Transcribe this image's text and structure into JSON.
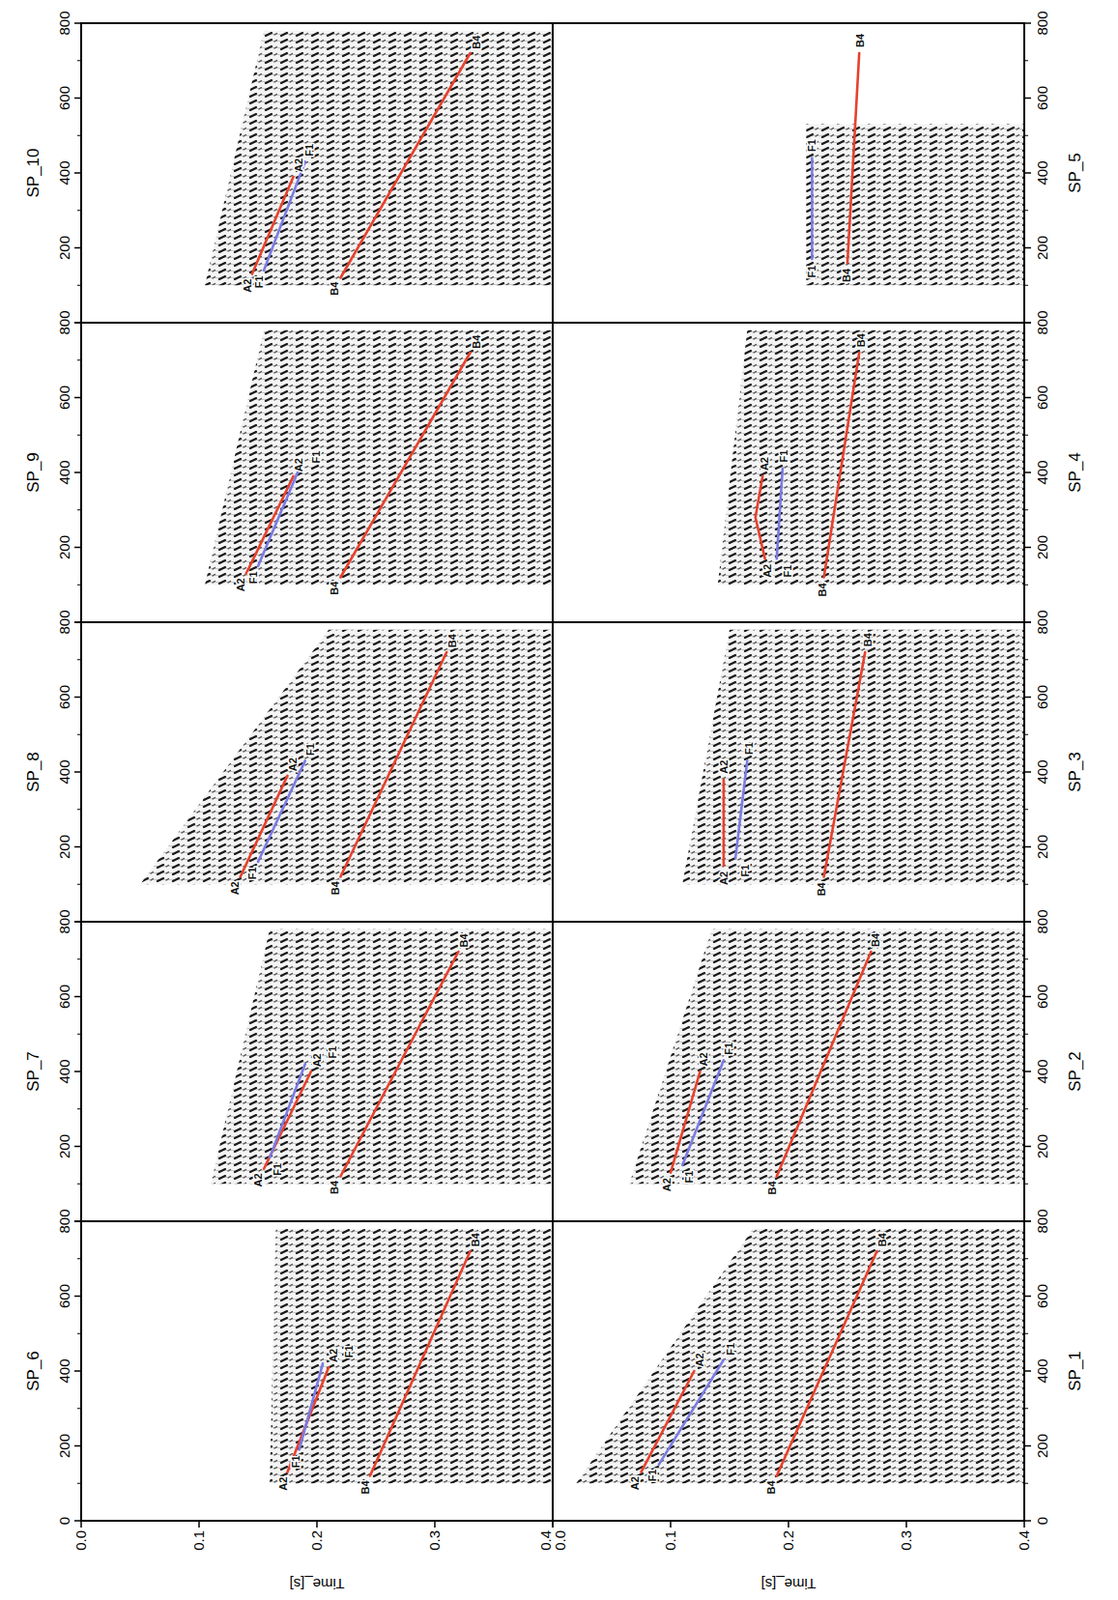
{
  "chart_data": [
    {
      "type": "line",
      "title": "SP_6",
      "xlim": [
        0,
        800
      ],
      "ylim": [
        0.4,
        0
      ],
      "xticks": [
        0,
        200,
        400,
        600,
        800
      ],
      "yticks": [
        {
          "value": 0,
          "label": "0.0"
        },
        0.1,
        0.2,
        0.3,
        0.4
      ],
      "y_label": "Time_[s]",
      "record": {
        "x": [
          100,
          780
        ],
        "start": [
          0.16,
          0.165
        ]
      },
      "series": [
        {
          "name": "A2",
          "color": "#e8412c",
          "x": [
            130,
            410
          ],
          "values": [
            0.175,
            0.21
          ]
        },
        {
          "name": "F1",
          "color": "#7b7be6",
          "x": [
            190,
            420
          ],
          "values": [
            0.185,
            0.205
          ]
        },
        {
          "name": "B4",
          "color": "#e8412c",
          "x": [
            120,
            720
          ],
          "values": [
            0.245,
            0.33
          ]
        }
      ]
    },
    {
      "type": "line",
      "title": "SP_7",
      "xlim": [
        0,
        800
      ],
      "ylim": [
        0.4,
        0
      ],
      "xticks": [
        0,
        200,
        400,
        600,
        800
      ],
      "record": {
        "x": [
          100,
          780
        ],
        "start": [
          0.11,
          0.16
        ]
      },
      "series": [
        {
          "name": "A2",
          "color": "#e8412c",
          "x": [
            140,
            400
          ],
          "values": [
            0.155,
            0.195
          ]
        },
        {
          "name": "F1",
          "color": "#7b7be6",
          "x": [
            170,
            420
          ],
          "values": [
            0.16,
            0.19
          ]
        },
        {
          "name": "B4",
          "color": "#e8412c",
          "x": [
            120,
            720
          ],
          "values": [
            0.22,
            0.32
          ]
        }
      ]
    },
    {
      "type": "line",
      "title": "SP_8",
      "xlim": [
        0,
        800
      ],
      "ylim": [
        0.4,
        0
      ],
      "xticks": [
        0,
        200,
        400,
        600,
        800
      ],
      "record": {
        "x": [
          100,
          780
        ],
        "start": [
          0.05,
          0.21
        ]
      },
      "series": [
        {
          "name": "A2",
          "color": "#e8412c",
          "x": [
            120,
            390
          ],
          "values": [
            0.135,
            0.175
          ]
        },
        {
          "name": "F1",
          "color": "#7b7be6",
          "x": [
            160,
            430
          ],
          "values": [
            0.15,
            0.19
          ]
        },
        {
          "name": "B4",
          "color": "#e8412c",
          "x": [
            120,
            720
          ],
          "values": [
            0.22,
            0.31
          ]
        }
      ]
    },
    {
      "type": "line",
      "title": "SP_9",
      "xlim": [
        0,
        800
      ],
      "ylim": [
        0.4,
        0
      ],
      "xticks": [
        0,
        200,
        400,
        600,
        800
      ],
      "record": {
        "x": [
          100,
          780
        ],
        "start": [
          0.105,
          0.155
        ]
      },
      "series": [
        {
          "name": "A2",
          "color": "#e8412c",
          "x": [
            130,
            390
          ],
          "values": [
            0.14,
            0.18
          ]
        },
        {
          "name": "F1",
          "color": "#7b7be6",
          "x": [
            150,
            410
          ],
          "values": [
            0.15,
            0.185
          ]
        },
        {
          "name": "B4",
          "color": "#e8412c",
          "x": [
            120,
            720
          ],
          "values": [
            0.22,
            0.33
          ]
        }
      ]
    },
    {
      "type": "line",
      "title": "SP_10",
      "xlim": [
        0,
        800
      ],
      "ylim": [
        0.4,
        0
      ],
      "xticks": [
        0,
        200,
        400,
        600,
        800
      ],
      "record": {
        "x": [
          100,
          780
        ],
        "start": [
          0.105,
          0.155
        ]
      },
      "series": [
        {
          "name": "A2",
          "color": "#e8412c",
          "x": [
            130,
            390
          ],
          "values": [
            0.145,
            0.18
          ]
        },
        {
          "name": "F1",
          "color": "#7b7be6",
          "x": [
            140,
            430
          ],
          "values": [
            0.155,
            0.19
          ]
        },
        {
          "name": "B4",
          "color": "#e8412c",
          "x": [
            120,
            720
          ],
          "values": [
            0.22,
            0.33
          ]
        }
      ]
    },
    {
      "type": "line",
      "title": "SP_1",
      "xlim": [
        0,
        800
      ],
      "ylim": [
        0.4,
        0
      ],
      "xticks": [
        0,
        200,
        400,
        600,
        800
      ],
      "yticks": [
        {
          "value": 0,
          "label": "0.0"
        },
        0.1,
        0.2,
        0.3,
        0.4
      ],
      "y_label": "Time_[s]",
      "record": {
        "x": [
          100,
          780
        ],
        "start": [
          0.02,
          0.17
        ]
      },
      "series": [
        {
          "name": "A2",
          "color": "#e8412c",
          "x": [
            130,
            400
          ],
          "values": [
            0.075,
            0.12
          ]
        },
        {
          "name": "F1",
          "color": "#7b7be6",
          "x": [
            150,
            430
          ],
          "values": [
            0.09,
            0.145
          ]
        },
        {
          "name": "B4",
          "color": "#e8412c",
          "x": [
            120,
            720
          ],
          "values": [
            0.19,
            0.275
          ]
        }
      ]
    },
    {
      "type": "line",
      "title": "SP_2",
      "xlim": [
        0,
        800
      ],
      "ylim": [
        0.4,
        0
      ],
      "xticks": [
        0,
        200,
        400,
        600,
        800
      ],
      "record": {
        "x": [
          100,
          780
        ],
        "start": [
          0.065,
          0.135
        ]
      },
      "series": [
        {
          "name": "A2",
          "color": "#e8412c",
          "x": [
            130,
            400
          ],
          "values": [
            0.1,
            0.125
          ]
        },
        {
          "name": "F1",
          "color": "#7b7be6",
          "x": [
            150,
            430
          ],
          "values": [
            0.11,
            0.145
          ]
        },
        {
          "name": "B4",
          "color": "#e8412c",
          "x": [
            120,
            720
          ],
          "values": [
            0.19,
            0.27
          ]
        }
      ]
    },
    {
      "type": "line",
      "title": "SP_3",
      "xlim": [
        0,
        800
      ],
      "ylim": [
        0.4,
        0
      ],
      "xticks": [
        0,
        200,
        400,
        600,
        800
      ],
      "record": {
        "x": [
          100,
          780
        ],
        "start": [
          0.11,
          0.15
        ]
      },
      "series": [
        {
          "name": "A2",
          "color": "#e8412c",
          "x": [
            150,
            380
          ],
          "values": [
            0.145,
            0.145
          ]
        },
        {
          "name": "F1",
          "color": "#7b7be6",
          "x": [
            170,
            430
          ],
          "values": [
            0.155,
            0.165
          ]
        },
        {
          "name": "B4",
          "color": "#e8412c",
          "x": [
            120,
            720
          ],
          "values": [
            0.23,
            0.265
          ]
        }
      ]
    },
    {
      "type": "line",
      "title": "SP_4",
      "xlim": [
        0,
        800
      ],
      "ylim": [
        0.4,
        0
      ],
      "xticks": [
        0,
        200,
        400,
        600,
        800
      ],
      "record": {
        "x": [
          100,
          780
        ],
        "start": [
          0.14,
          0.165
        ]
      },
      "series": [
        {
          "name": "A2",
          "color": "#e8412c",
          "x": [
            170,
            280,
            390
          ],
          "values": [
            0.18,
            0.172,
            0.178
          ]
        },
        {
          "name": "F1",
          "color": "#7b7be6",
          "x": [
            170,
            410
          ],
          "values": [
            0.19,
            0.195
          ]
        },
        {
          "name": "B4",
          "color": "#e8412c",
          "x": [
            120,
            720
          ],
          "values": [
            0.23,
            0.26
          ]
        }
      ]
    },
    {
      "type": "line",
      "title": "SP_5",
      "xlim": [
        0,
        800
      ],
      "ylim": [
        0.4,
        0
      ],
      "xticks": [
        0,
        200,
        400,
        600,
        800
      ],
      "record": {
        "x": [
          100,
          530
        ],
        "start": [
          0.215,
          0.215
        ]
      },
      "series": [
        {
          "name": "F1",
          "color": "#7b7be6",
          "x": [
            170,
            440
          ],
          "values": [
            0.22,
            0.22
          ]
        },
        {
          "name": "B4",
          "color": "#e8412c",
          "x": [
            160,
            720
          ],
          "values": [
            0.25,
            0.26
          ]
        }
      ]
    }
  ]
}
